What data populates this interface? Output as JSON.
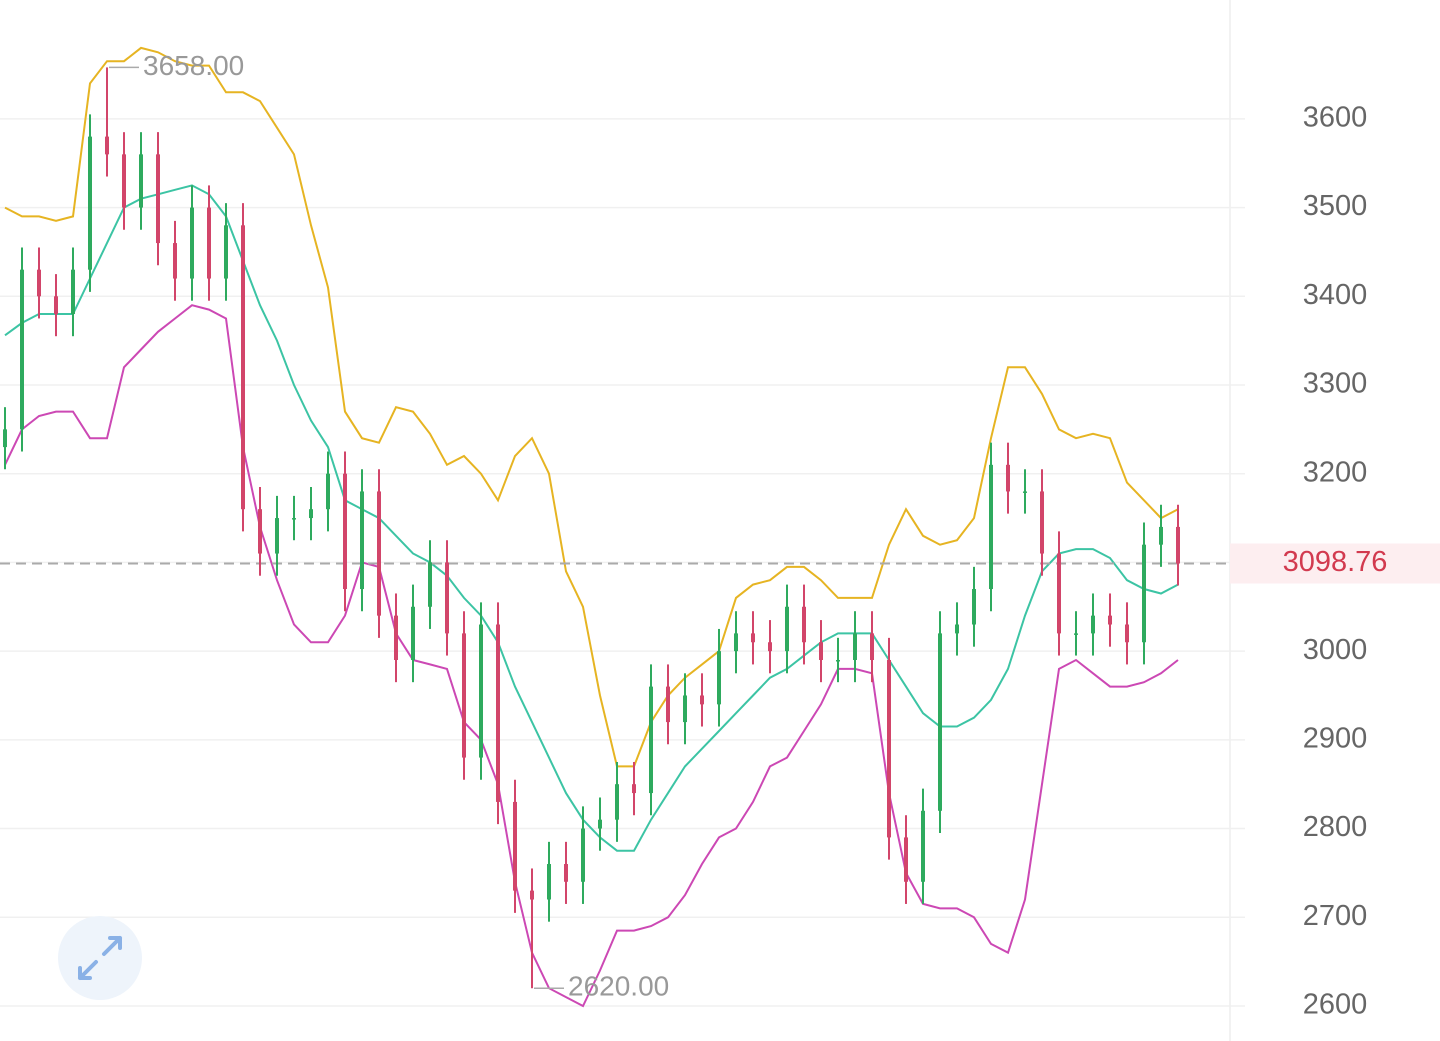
{
  "chart_data": {
    "type": "ohlc",
    "up_color": "#2eaa5e",
    "down_color": "#d2456a",
    "open": [
      3230,
      3250,
      3430,
      3400,
      3380,
      3430,
      3580,
      3560,
      3500,
      3560,
      3460,
      3420,
      3500,
      3420,
      3480,
      3160,
      3110,
      3150,
      3150,
      3160,
      3200,
      3070,
      3180,
      3040,
      2990,
      3050,
      3100,
      3020,
      2880,
      3030,
      2830,
      2730,
      2720,
      2760,
      2740,
      2800,
      2810,
      2850,
      2840,
      2960,
      2920,
      2950,
      2940,
      3000,
      3020,
      3010,
      3000,
      3050,
      3010,
      2990,
      2990,
      3020,
      2990,
      2790,
      2740,
      2820,
      3020,
      3030,
      3070,
      3210,
      3180,
      3180,
      3110,
      3020,
      3020,
      3040,
      3030,
      3010,
      3120,
      3140
    ],
    "high": [
      3275,
      3455,
      3455,
      3425,
      3455,
      3605,
      3658,
      3585,
      3585,
      3585,
      3485,
      3525,
      3525,
      3505,
      3505,
      3185,
      3175,
      3175,
      3185,
      3225,
      3225,
      3205,
      3205,
      3065,
      3075,
      3125,
      3125,
      3045,
      3055,
      3055,
      2855,
      2755,
      2785,
      2785,
      2825,
      2835,
      2875,
      2875,
      2985,
      2985,
      2975,
      2975,
      3025,
      3045,
      3045,
      3035,
      3075,
      3075,
      3035,
      3015,
      3045,
      3045,
      3015,
      2815,
      2845,
      3045,
      3055,
      3095,
      3235,
      3235,
      3205,
      3205,
      3135,
      3045,
      3065,
      3065,
      3055,
      3145,
      3165,
      3165
    ],
    "low": [
      3205,
      3225,
      3375,
      3355,
      3355,
      3405,
      3535,
      3475,
      3475,
      3435,
      3395,
      3395,
      3395,
      3395,
      3135,
      3085,
      3085,
      3125,
      3125,
      3135,
      3045,
      3045,
      3015,
      2965,
      2965,
      3025,
      2995,
      2855,
      2855,
      2805,
      2705,
      2620,
      2695,
      2715,
      2715,
      2775,
      2785,
      2815,
      2815,
      2895,
      2895,
      2915,
      2915,
      2975,
      2985,
      2975,
      2975,
      2985,
      2965,
      2965,
      2965,
      2965,
      2765,
      2715,
      2715,
      2795,
      2995,
      3005,
      3045,
      3155,
      3155,
      3085,
      2995,
      2995,
      2995,
      3005,
      2985,
      2985,
      3095,
      3074
    ],
    "close": [
      3250,
      3430,
      3400,
      3380,
      3430,
      3580,
      3560,
      3500,
      3560,
      3460,
      3420,
      3500,
      3420,
      3480,
      3160,
      3110,
      3150,
      3150,
      3160,
      3200,
      3070,
      3180,
      3040,
      2990,
      3050,
      3100,
      3020,
      2880,
      3030,
      2830,
      2730,
      2720,
      2760,
      2740,
      2800,
      2810,
      2850,
      2840,
      2960,
      2920,
      2950,
      2940,
      3000,
      3020,
      3010,
      3000,
      3050,
      3010,
      2990,
      2990,
      3020,
      2990,
      2790,
      2740,
      2820,
      3020,
      3030,
      3070,
      3210,
      3180,
      3180,
      3110,
      3020,
      3020,
      3040,
      3030,
      3010,
      3120,
      3140,
      3098.76
    ],
    "bands": [
      {
        "color": "#e6b422",
        "values": [
          3500,
          3490,
          3490,
          3485,
          3490,
          3640,
          3665,
          3665,
          3680,
          3675,
          3665,
          3660,
          3660,
          3630,
          3630,
          3620,
          3590,
          3560,
          3480,
          3410,
          3270,
          3240,
          3235,
          3275,
          3270,
          3245,
          3210,
          3220,
          3200,
          3170,
          3220,
          3240,
          3200,
          3090,
          3050,
          2950,
          2870,
          2870,
          2920,
          2950,
          2970,
          2985,
          3000,
          3060,
          3075,
          3080,
          3095,
          3095,
          3080,
          3060,
          3060,
          3060,
          3120,
          3160,
          3130,
          3120,
          3125,
          3150,
          3240,
          3320,
          3320,
          3290,
          3250,
          3240,
          3245,
          3240,
          3190,
          3170,
          3150,
          3160
        ]
      },
      {
        "color": "#3cc4a4",
        "values": [
          3356,
          3370,
          3380,
          3380,
          3380,
          3420,
          3460,
          3500,
          3510,
          3515,
          3520,
          3525,
          3515,
          3490,
          3440,
          3390,
          3350,
          3300,
          3260,
          3230,
          3170,
          3160,
          3150,
          3130,
          3110,
          3100,
          3085,
          3060,
          3040,
          3010,
          2960,
          2920,
          2880,
          2840,
          2810,
          2790,
          2775,
          2775,
          2810,
          2840,
          2870,
          2890,
          2910,
          2930,
          2950,
          2970,
          2980,
          2995,
          3010,
          3020,
          3020,
          3020,
          2990,
          2960,
          2930,
          2915,
          2915,
          2925,
          2945,
          2980,
          3040,
          3090,
          3110,
          3115,
          3115,
          3105,
          3080,
          3070,
          3065,
          3075
        ]
      },
      {
        "color": "#cc48b4",
        "values": [
          3210,
          3250,
          3265,
          3270,
          3270,
          3240,
          3240,
          3320,
          3340,
          3360,
          3375,
          3390,
          3385,
          3375,
          3230,
          3140,
          3080,
          3030,
          3010,
          3010,
          3040,
          3100,
          3095,
          3020,
          2990,
          2985,
          2980,
          2920,
          2900,
          2850,
          2740,
          2660,
          2620,
          2610,
          2600,
          2640,
          2685,
          2685,
          2690,
          2700,
          2725,
          2760,
          2790,
          2800,
          2830,
          2870,
          2880,
          2910,
          2940,
          2980,
          2980,
          2975,
          2840,
          2750,
          2715,
          2710,
          2710,
          2700,
          2670,
          2660,
          2720,
          2850,
          2980,
          2990,
          2975,
          2960,
          2960,
          2965,
          2975,
          2990
        ]
      }
    ],
    "max_label": {
      "value": 3658,
      "label": "3658.00"
    },
    "min_label": {
      "value": 2620,
      "label": "2620.00"
    },
    "last_price": 3098.76,
    "last_price_color": "#d23a4f",
    "ylim": [
      2560.5,
      3734
    ],
    "yticks": [
      2600,
      2700,
      2800,
      2900,
      3000,
      3100,
      3200,
      3300,
      3400,
      3500,
      3600
    ],
    "grid": true
  }
}
